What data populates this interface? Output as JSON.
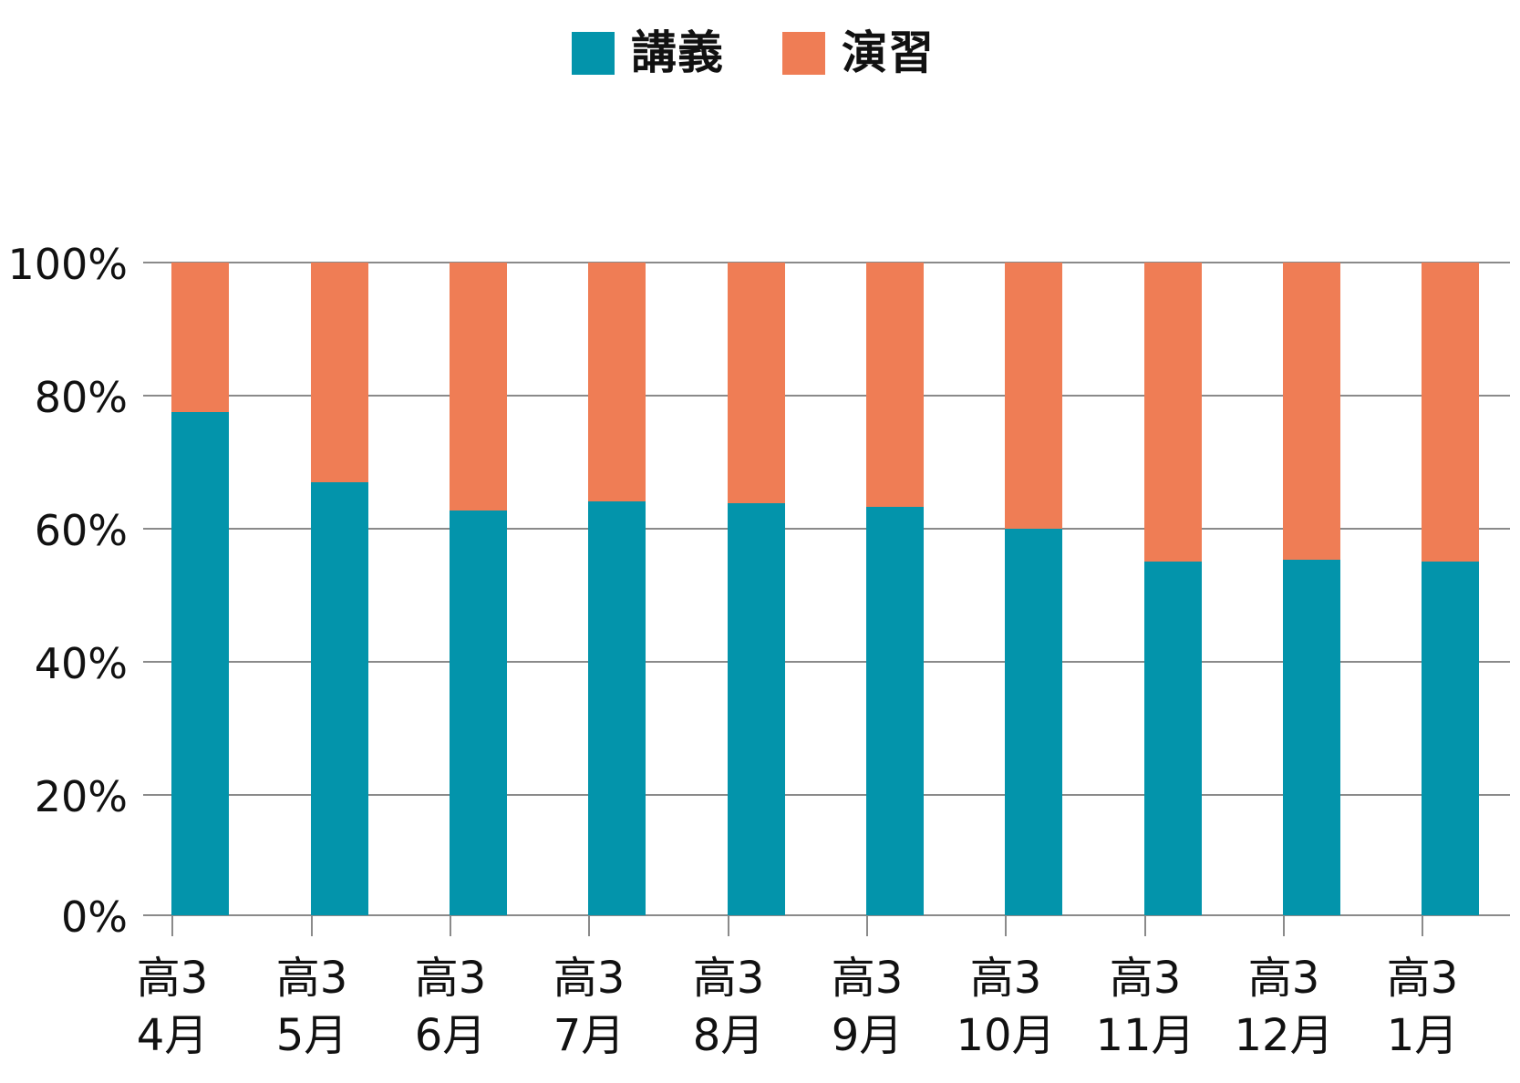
{
  "chart_data": {
    "type": "bar",
    "stacked": true,
    "normalized": true,
    "title": "",
    "xlabel": "",
    "ylabel": "",
    "ylim": [
      0,
      100
    ],
    "yticks": [
      "0%",
      "20%",
      "40%",
      "60%",
      "80%",
      "100%"
    ],
    "grid": true,
    "legend_position": "top",
    "categories": [
      [
        "高3",
        "4月"
      ],
      [
        "高3",
        "5月"
      ],
      [
        "高3",
        "6月"
      ],
      [
        "高3",
        "7月"
      ],
      [
        "高3",
        "8月"
      ],
      [
        "高3",
        "9月"
      ],
      [
        "高3",
        "10月"
      ],
      [
        "高3",
        "11月"
      ],
      [
        "高3",
        "12月"
      ],
      [
        "高3",
        "1月"
      ]
    ],
    "series": [
      {
        "name": "講義",
        "color": "#0394ab",
        "values": [
          77.5,
          67.0,
          62.7,
          64.1,
          63.8,
          63.3,
          60.0,
          55.1,
          55.4,
          55.1
        ]
      },
      {
        "name": "演習",
        "color": "#ef7d55",
        "values": [
          22.5,
          33.0,
          37.3,
          35.9,
          36.2,
          36.7,
          40.0,
          44.9,
          44.6,
          44.9
        ]
      }
    ]
  },
  "legend": {
    "items": [
      {
        "label": "講義",
        "color": "#0394ab"
      },
      {
        "label": "演習",
        "color": "#ef7d55"
      }
    ]
  },
  "colors": {
    "gridline": "#8a8a8a",
    "text": "#111111",
    "background": "#ffffff"
  }
}
